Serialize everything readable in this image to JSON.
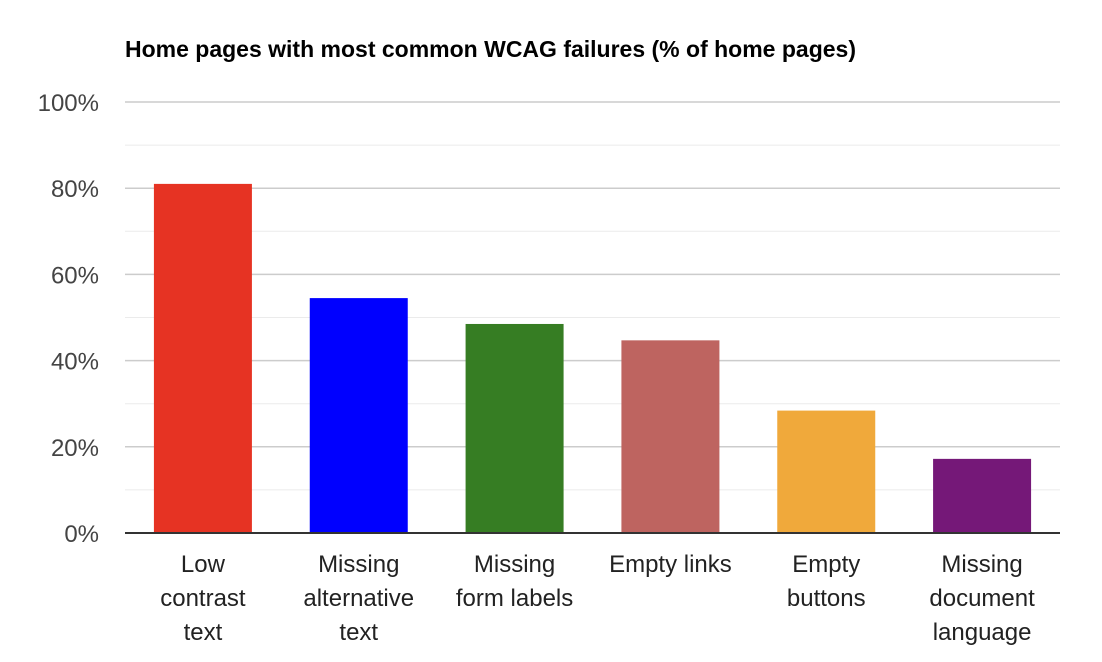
{
  "chart_data": {
    "type": "bar",
    "title": "Home pages with most common WCAG failures (% of home pages)",
    "xlabel": "",
    "ylabel": "",
    "categories": [
      [
        "Low",
        "contrast",
        "text"
      ],
      [
        "Missing",
        "alternative",
        "text"
      ],
      [
        "Missing",
        "form labels"
      ],
      [
        "Empty links"
      ],
      [
        "Empty",
        "buttons"
      ],
      [
        "Missing",
        "document",
        "language"
      ]
    ],
    "values": [
      81,
      54.5,
      48.5,
      44.7,
      28.4,
      17.2
    ],
    "bar_colors": [
      "#e63323",
      "#0000ff",
      "#367d23",
      "#be6460",
      "#f0a93b",
      "#751878"
    ],
    "y_ticks": [
      "0%",
      "20%",
      "40%",
      "60%",
      "80%",
      "100%"
    ],
    "ylim": [
      0,
      100
    ],
    "grid": true,
    "grid_color": "#cccccc",
    "minor_grid_color": "#ebebeb",
    "axis_color": "#333333"
  }
}
